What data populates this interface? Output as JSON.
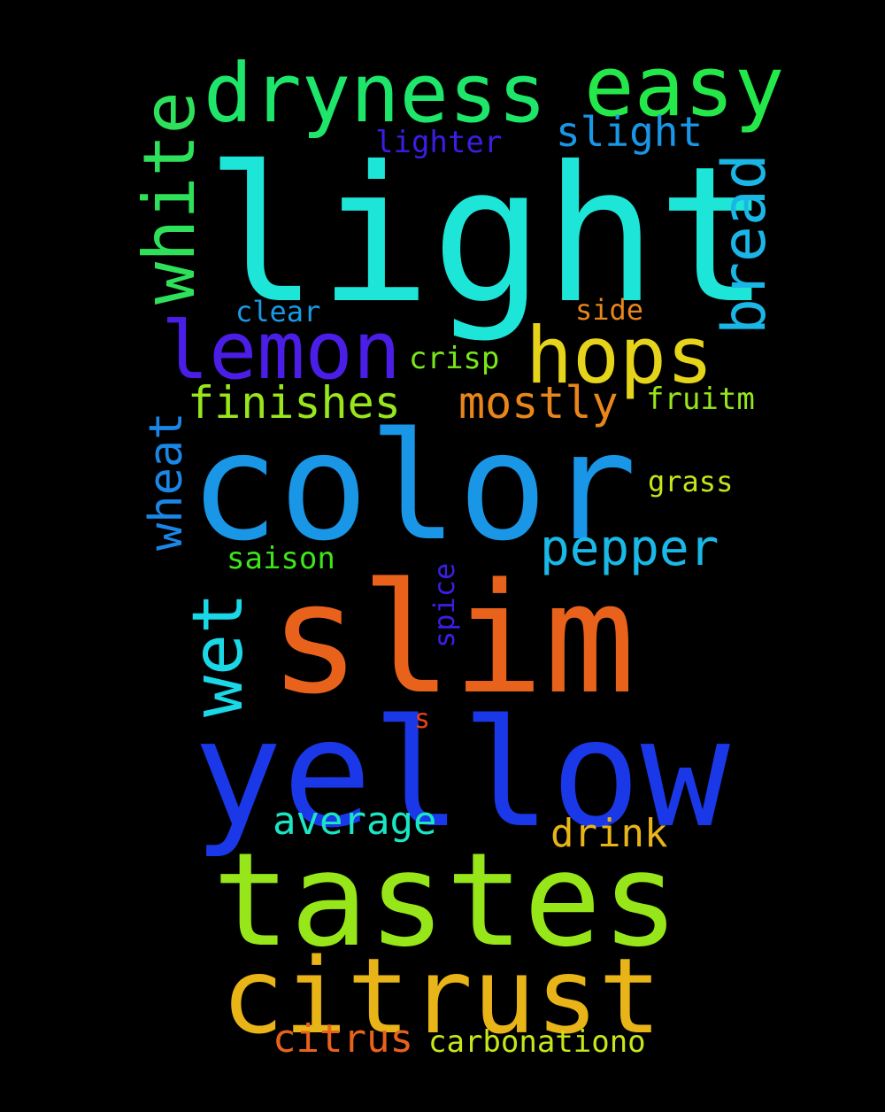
{
  "words": [
    {
      "id": "light",
      "text": "light",
      "color": "#1de6d8"
    },
    {
      "id": "color",
      "text": "color",
      "color": "#1a96e6"
    },
    {
      "id": "slim",
      "text": "slim",
      "color": "#e8621c"
    },
    {
      "id": "yellow",
      "text": "yellow",
      "color": "#1a38e8"
    },
    {
      "id": "tastes",
      "text": "tastes",
      "color": "#96e61a"
    },
    {
      "id": "citrust",
      "text": "citrust",
      "color": "#e8b418"
    },
    {
      "id": "dryness",
      "text": "dryness",
      "color": "#1ee66a"
    },
    {
      "id": "easy",
      "text": "easy",
      "color": "#24e84a"
    },
    {
      "id": "white",
      "text": "white",
      "color": "#2ee05a"
    },
    {
      "id": "lemon",
      "text": "lemon",
      "color": "#4a1ee6"
    },
    {
      "id": "hops",
      "text": "hops",
      "color": "#e6d41a"
    },
    {
      "id": "bread",
      "text": "bread",
      "color": "#1ab6e6"
    },
    {
      "id": "wet",
      "text": "wet",
      "color": "#1ad8e6"
    },
    {
      "id": "finishes",
      "text": "finishes",
      "color": "#98e61c"
    },
    {
      "id": "mostly",
      "text": "mostly",
      "color": "#e8861c"
    },
    {
      "id": "pepper",
      "text": "pepper",
      "color": "#1ab8e6"
    },
    {
      "id": "wheat",
      "text": "wheat",
      "color": "#1a86e6"
    },
    {
      "id": "slight",
      "text": "slight",
      "color": "#1a96e6"
    },
    {
      "id": "lighter",
      "text": "lighter",
      "color": "#3a1ee6"
    },
    {
      "id": "clear",
      "text": "clear",
      "color": "#1a9ae6"
    },
    {
      "id": "side",
      "text": "side",
      "color": "#e8861c"
    },
    {
      "id": "crisp",
      "text": "crisp",
      "color": "#7ae61a"
    },
    {
      "id": "fruitm",
      "text": "fruitm",
      "color": "#96e61a"
    },
    {
      "id": "grass",
      "text": "grass",
      "color": "#c4e61a"
    },
    {
      "id": "saison",
      "text": "saison",
      "color": "#3ee61a"
    },
    {
      "id": "spice",
      "text": "spice",
      "color": "#3a1ee6"
    },
    {
      "id": "s",
      "text": "s",
      "color": "#e8421c"
    },
    {
      "id": "average",
      "text": "average",
      "color": "#1ae6c4"
    },
    {
      "id": "drink",
      "text": "drink",
      "color": "#e8b418"
    },
    {
      "id": "citrus",
      "text": "citrus",
      "color": "#e8621c"
    },
    {
      "id": "carbonationo",
      "text": "carbonationo",
      "color": "#c8e61a"
    }
  ]
}
